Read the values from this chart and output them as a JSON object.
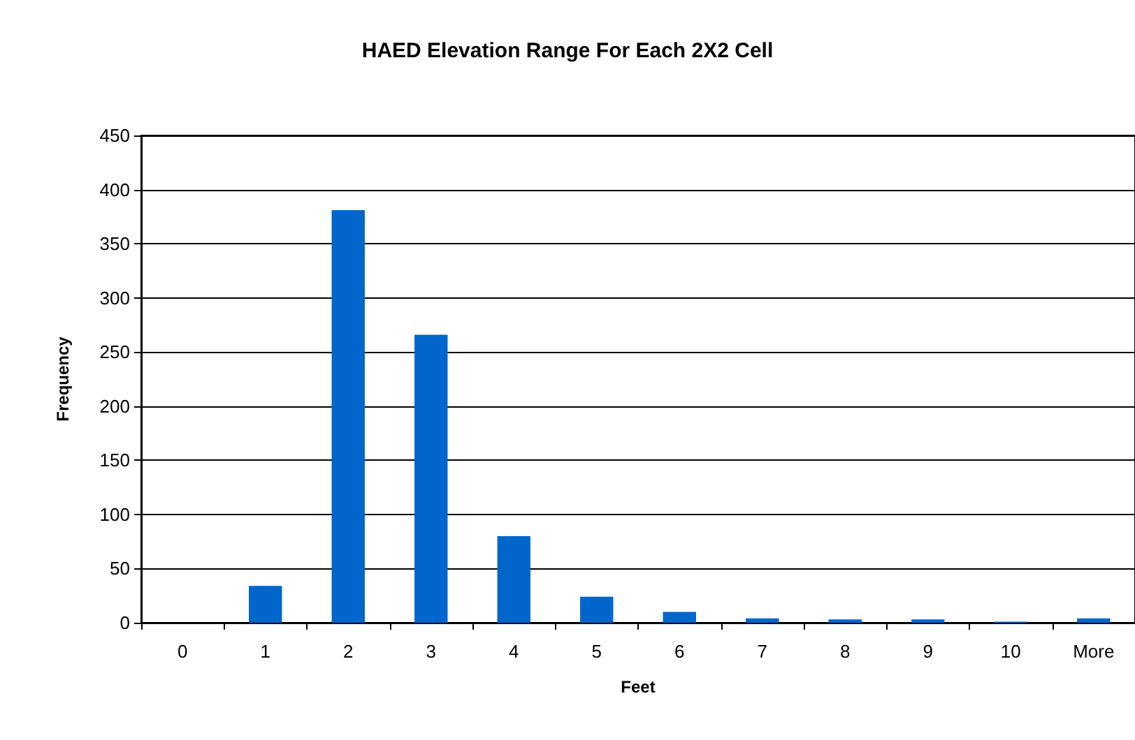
{
  "chart_data": {
    "type": "bar",
    "title": "HAED Elevation Range For Each 2X2 Cell",
    "xlabel": "Feet",
    "ylabel": "Frequency",
    "categories": [
      "0",
      "1",
      "2",
      "3",
      "4",
      "5",
      "6",
      "7",
      "8",
      "9",
      "10",
      "More"
    ],
    "values": [
      0,
      34,
      381,
      266,
      80,
      24,
      10,
      4,
      3,
      3,
      1,
      4
    ],
    "color": "#0066cc",
    "ylim": [
      0,
      450
    ],
    "yticks": [
      0,
      50,
      100,
      150,
      200,
      250,
      300,
      350,
      400,
      450
    ],
    "grid": "y"
  }
}
